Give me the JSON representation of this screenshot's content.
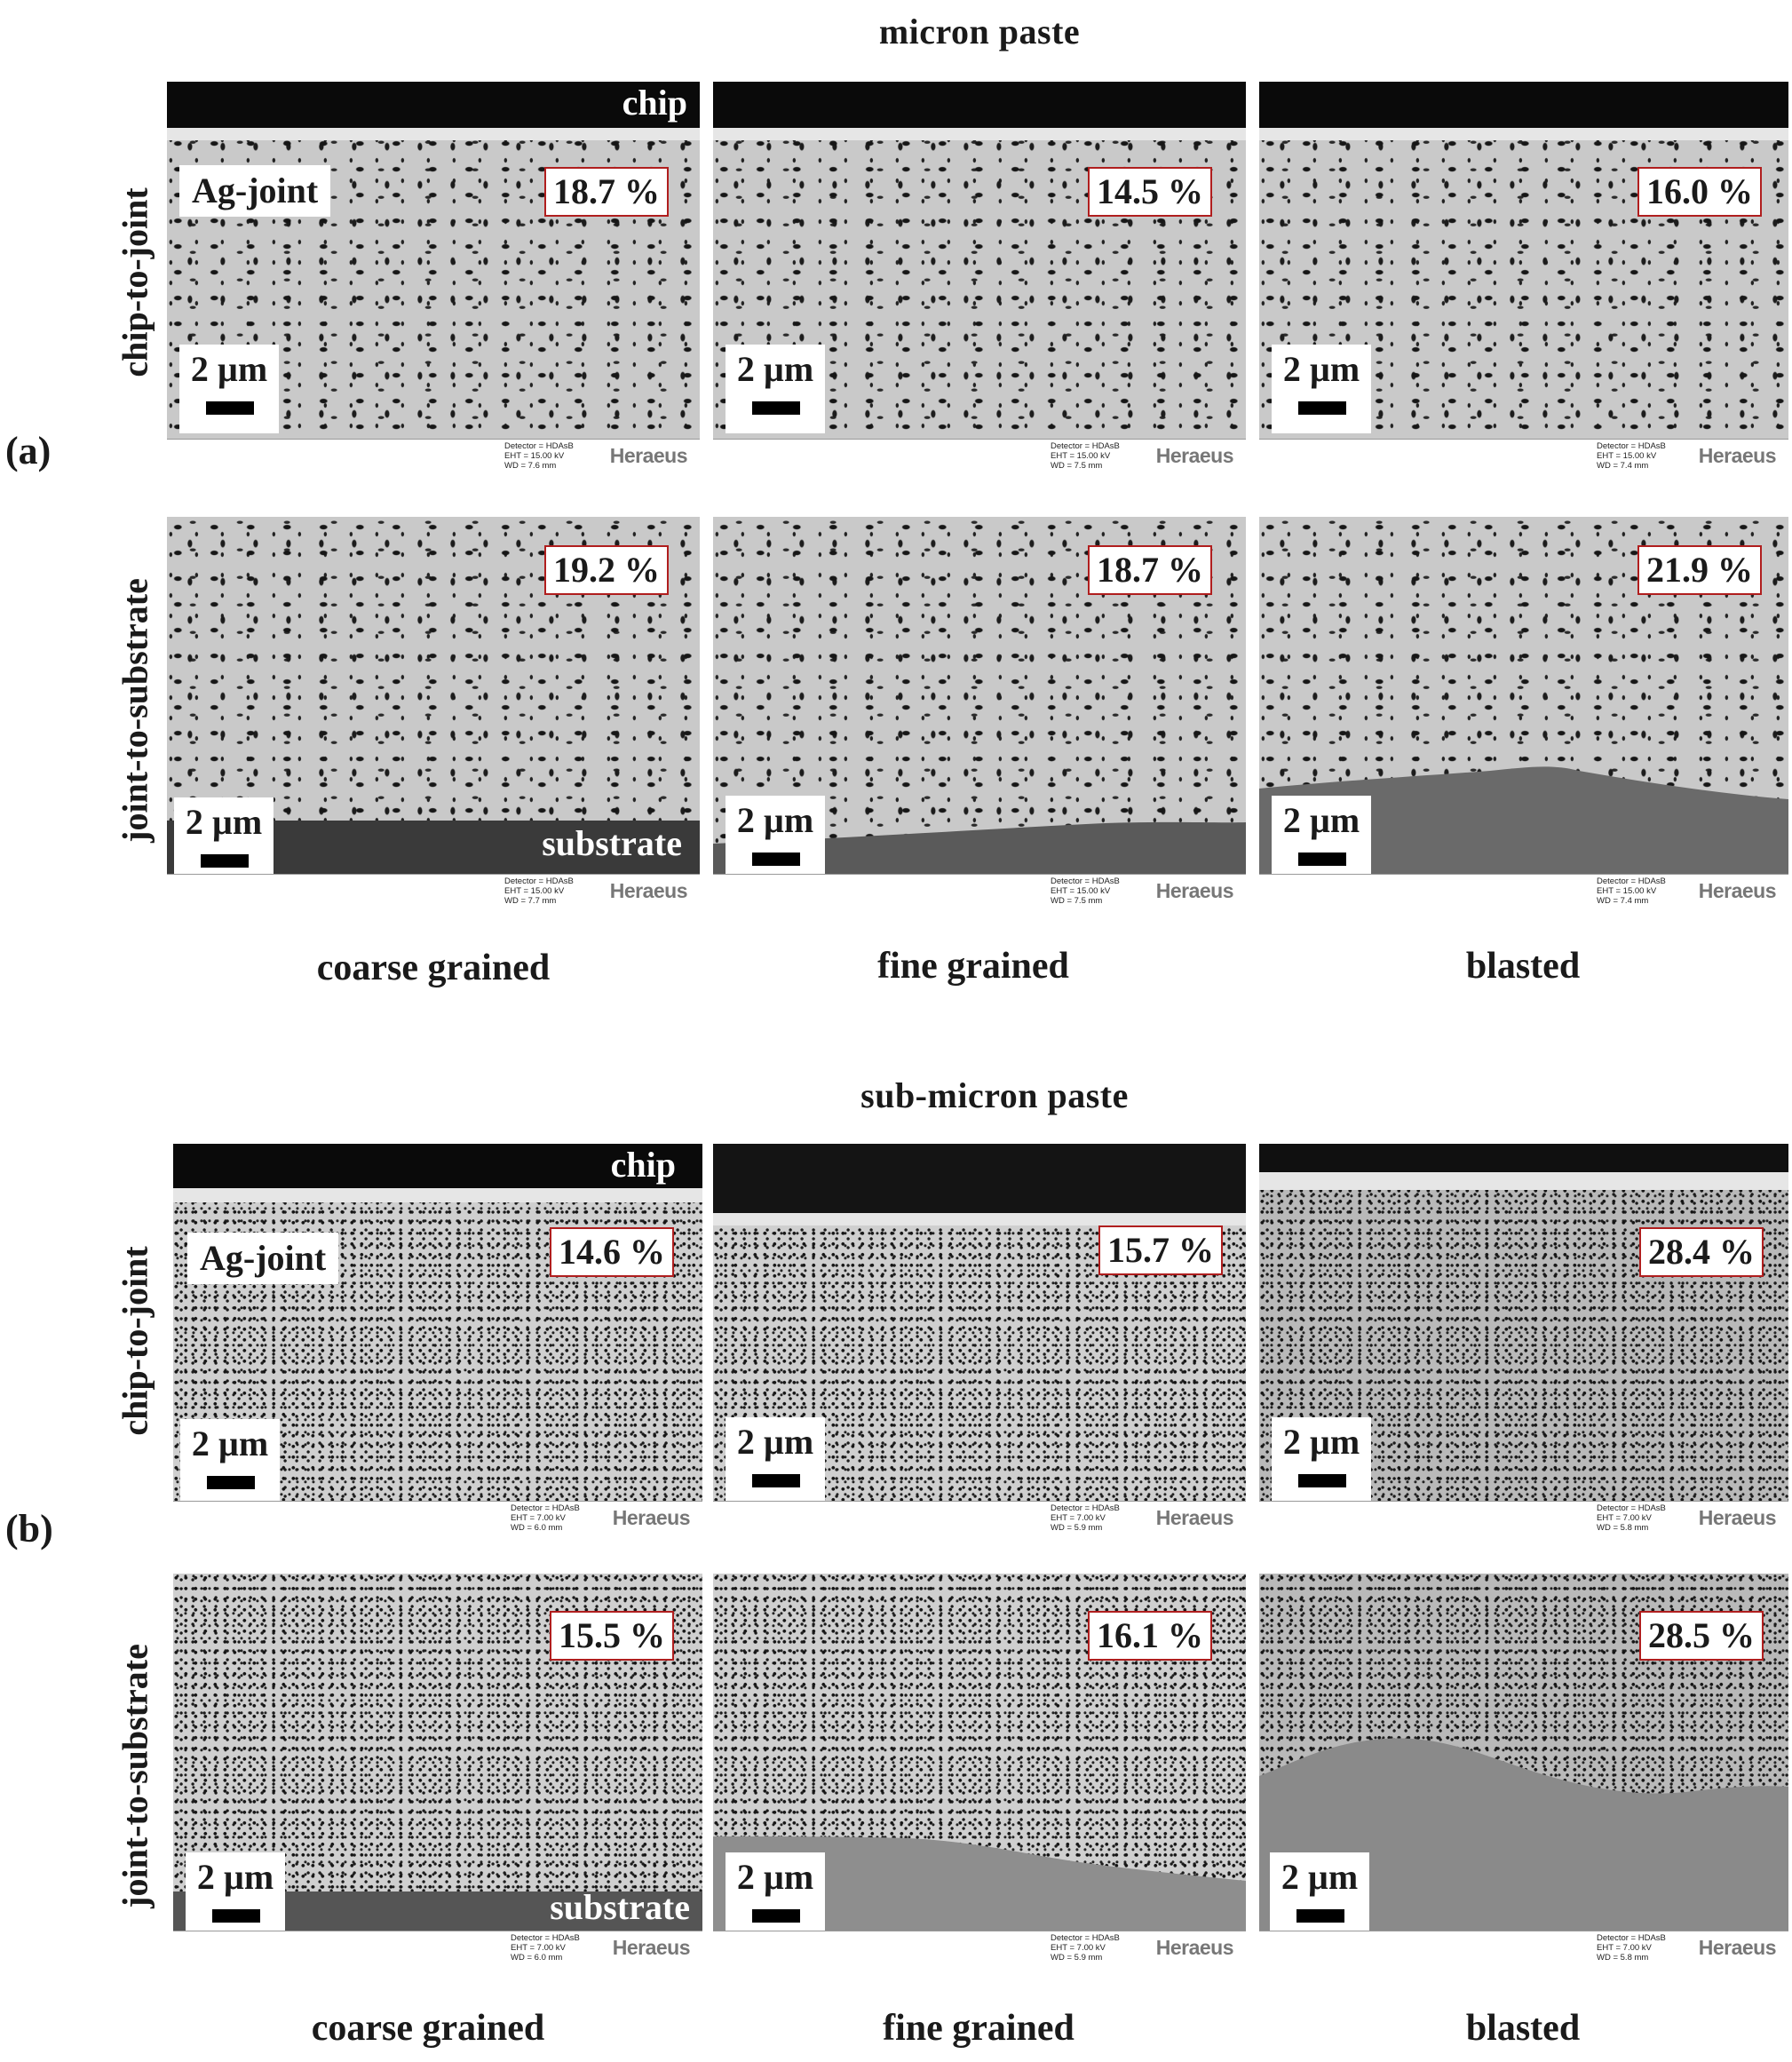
{
  "section_a": {
    "title": "micron paste",
    "panel_label": "(a)",
    "row_labels": [
      "chip-to-joint",
      "joint-to-substrate"
    ],
    "col_labels": [
      "coarse grained",
      "fine grained",
      "blasted"
    ],
    "overlay": {
      "chip": "chip",
      "ag_joint": "Ag-joint",
      "substrate": "substrate",
      "scale": "2 µm"
    },
    "porosity": [
      [
        "18.7 %",
        "14.5 %",
        "16.0 %"
      ],
      [
        "19.2 %",
        "18.7 %",
        "21.9 %"
      ]
    ],
    "detector": [
      [
        "Detector = HDAsB\nEHT = 15.00 kV\nWD = 7.6 mm",
        "Detector = HDAsB\nEHT = 15.00 kV\nWD = 7.5 mm",
        "Detector = HDAsB\nEHT = 15.00 kV\nWD = 7.4 mm"
      ],
      [
        "Detector = HDAsB\nEHT = 15.00 kV\nWD = 7.7 mm",
        "Detector = HDAsB\nEHT = 15.00 kV\nWD = 7.5 mm",
        "Detector = HDAsB\nEHT = 15.00 kV\nWD = 7.4 mm"
      ]
    ]
  },
  "section_b": {
    "title": "sub-micron paste",
    "panel_label": "(b)",
    "row_labels": [
      "chip-to-joint",
      "joint-to-substrate"
    ],
    "col_labels": [
      "coarse grained",
      "fine grained",
      "blasted"
    ],
    "overlay": {
      "chip": "chip",
      "ag_joint": "Ag-joint",
      "substrate": "substrate",
      "scale": "2 µm"
    },
    "porosity": [
      [
        "14.6 %",
        "15.7 %",
        "28.4 %"
      ],
      [
        "15.5 %",
        "16.1 %",
        "28.5 %"
      ]
    ],
    "detector": [
      [
        "Detector = HDAsB\nEHT = 7.00 kV\nWD = 6.0 mm",
        "Detector = HDAsB\nEHT = 7.00 kV\nWD = 5.9 mm",
        "Detector = HDAsB\nEHT = 7.00 kV\nWD = 5.8 mm"
      ],
      [
        "Detector = HDAsB\nEHT = 7.00 kV\nWD = 6.0 mm",
        "Detector = HDAsB\nEHT = 7.00 kV\nWD = 5.9 mm",
        "Detector = HDAsB\nEHT = 7.00 kV\nWD = 5.8 mm"
      ]
    ]
  },
  "brand": "Heraeus"
}
